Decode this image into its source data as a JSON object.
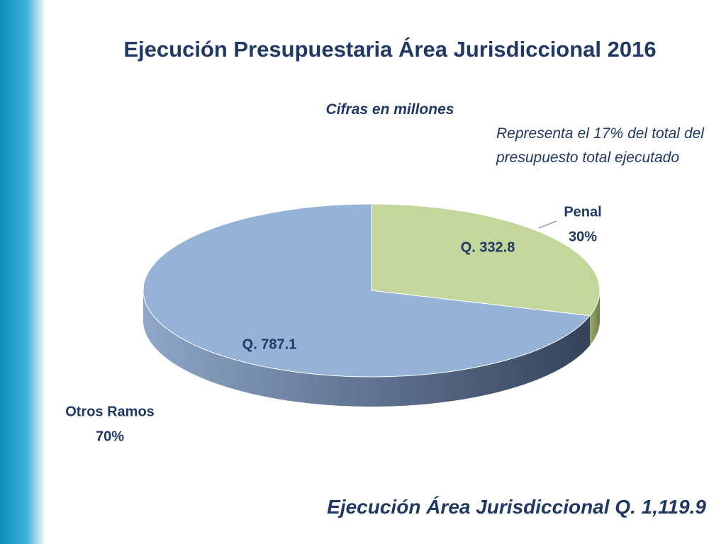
{
  "chart_data": {
    "type": "pie3d",
    "title": "Ejecución Presupuestaria Área Jurisdiccional 2016",
    "subtitle": "Cifras en millones",
    "annotation": "Representa el 17% del total del presupuesto total ejecutado",
    "footer": "Ejecución Área Jurisdiccional Q. 1,119.9",
    "categories": [
      "Otros Ramos",
      "Penal"
    ],
    "values": [
      787.1,
      332.8
    ],
    "value_labels": [
      "Q. 787.1",
      "Q. 332.8"
    ],
    "percentages": [
      70,
      30
    ],
    "percentage_labels": [
      "70%",
      "30%"
    ],
    "colors": [
      "#95b3d7",
      "#c3d69b"
    ]
  }
}
